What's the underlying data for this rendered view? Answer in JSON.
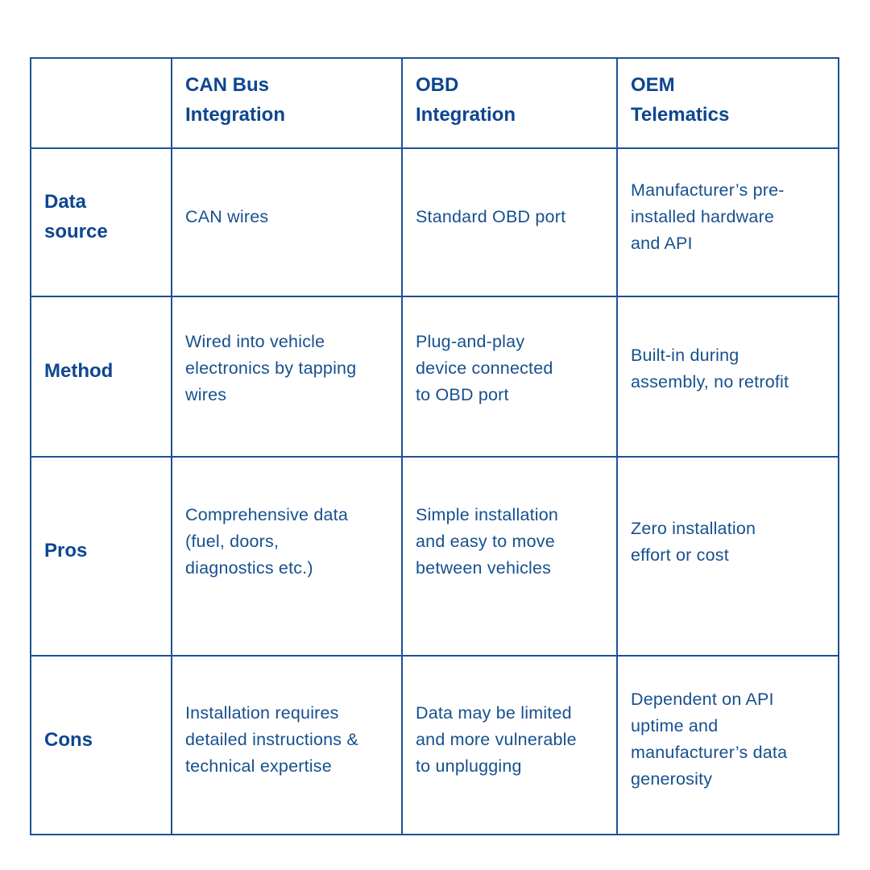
{
  "table": {
    "columns": [
      "",
      "CAN Bus Integration",
      "OBD Integration",
      "OEM Telematics"
    ],
    "header_lines": [
      [],
      [
        "CAN Bus",
        "Integration"
      ],
      [
        "OBD",
        "Integration"
      ],
      [
        "OEM",
        "Telematics"
      ]
    ],
    "rows": [
      {
        "label": "Data source",
        "label_lines": [
          "Data",
          "source"
        ],
        "cells": [
          {
            "lines": [
              "CAN wires"
            ]
          },
          {
            "lines": [
              "Standard OBD port"
            ]
          },
          {
            "lines": [
              "Manufacturer’s pre-",
              "installed hardware",
              "and API"
            ]
          }
        ]
      },
      {
        "label": "Method",
        "label_lines": [
          "Method"
        ],
        "cells": [
          {
            "lines": [
              "Wired into vehicle",
              "electronics by tapping",
              "wires"
            ]
          },
          {
            "lines": [
              "Plug-and-play",
              "device connected",
              "to OBD port"
            ]
          },
          {
            "lines": [
              "Built-in during",
              "assembly, no retrofit"
            ]
          }
        ]
      },
      {
        "label": "Pros",
        "label_lines": [
          "Pros"
        ],
        "cells": [
          {
            "lines": [
              "Comprehensive data",
              "(fuel, doors,",
              "diagnostics etc.)"
            ]
          },
          {
            "lines": [
              "Simple installation",
              "and easy to move",
              "between vehicles"
            ]
          },
          {
            "lines": [
              "Zero installation",
              "effort or cost"
            ]
          }
        ]
      },
      {
        "label": "Cons",
        "label_lines": [
          "Cons"
        ],
        "cells": [
          {
            "lines": [
              "Installation requires",
              "detailed instructions &",
              "technical expertise"
            ]
          },
          {
            "lines": [
              "Data may be limited",
              "and more vulnerable",
              "to unplugging"
            ]
          },
          {
            "lines": [
              "Dependent on API",
              "uptime and",
              "manufacturer’s data",
              "generosity"
            ]
          }
        ]
      }
    ]
  },
  "colors": {
    "border": "#1d5296",
    "heading_text": "#0d4690",
    "body_text": "#17508f",
    "background": "#ffffff"
  }
}
